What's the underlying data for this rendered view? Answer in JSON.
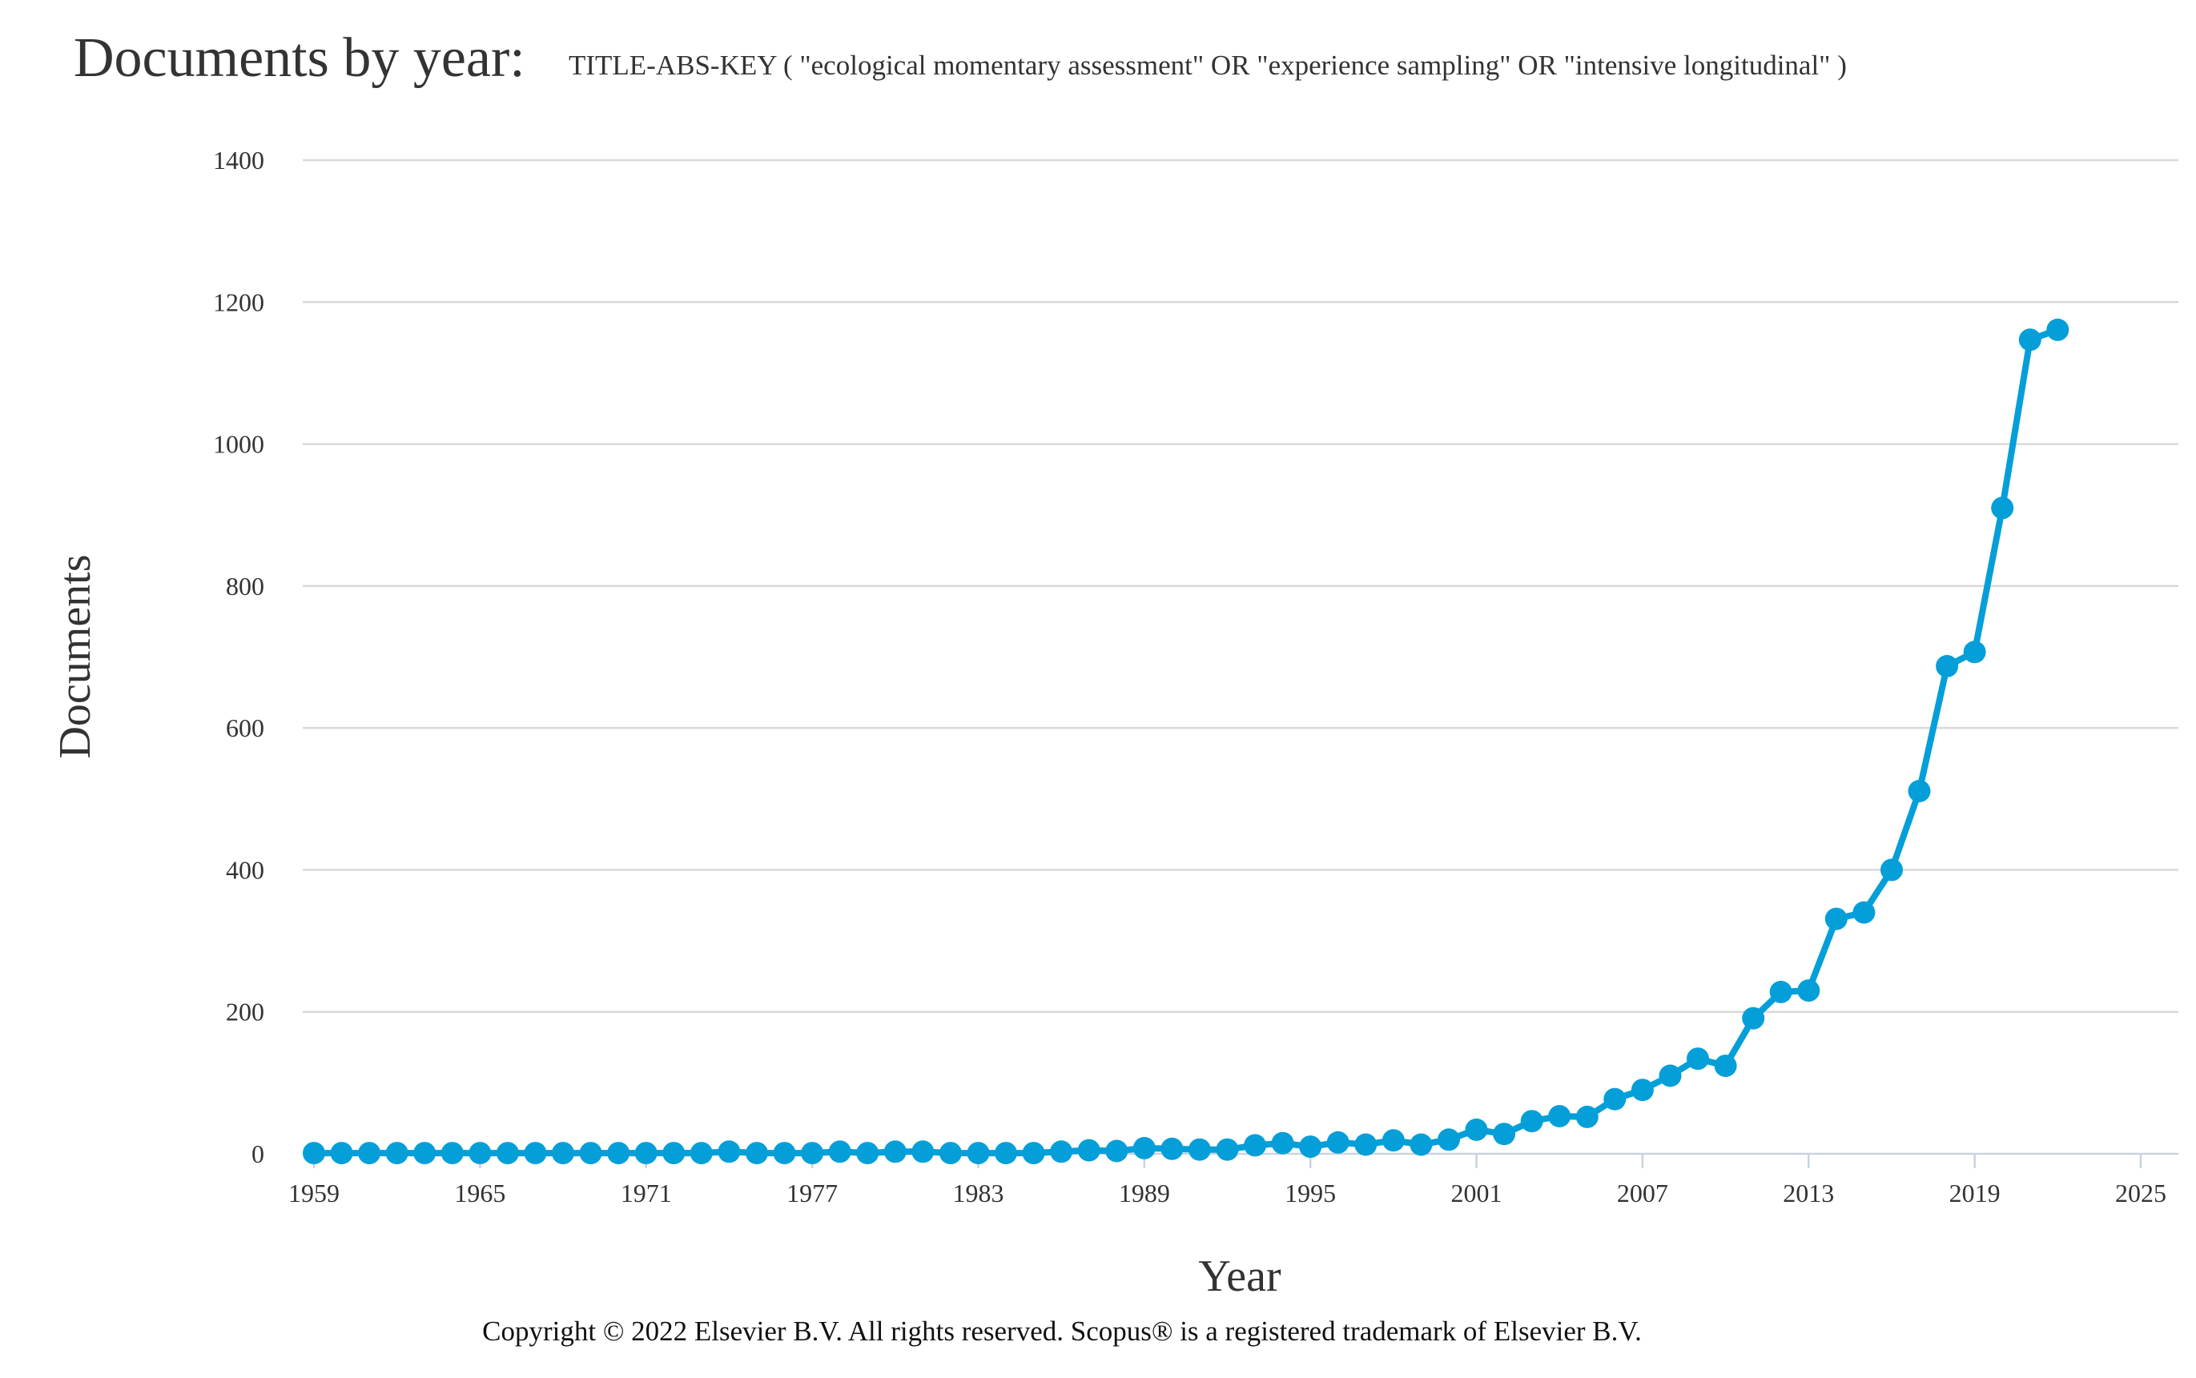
{
  "header": {
    "title": "Documents by year:",
    "query": "TITLE-ABS-KEY ( \"ecological momentary assessment\"  OR  \"experience sampling\"  OR  \"intensive longitudinal\" )"
  },
  "footer": {
    "copyright": "Copyright © 2022 Elsevier B.V. All rights reserved. Scopus® is a registered trademark of Elsevier B.V."
  },
  "colors": {
    "series": "#049fd9",
    "grid": "#d9d9d9",
    "axis": "#c9d3e0",
    "text": "#333333"
  },
  "chart_data": {
    "type": "line",
    "xlabel": "Year",
    "ylabel": "Documents",
    "xlim": [
      1959,
      2025
    ],
    "ylim": [
      0,
      1400
    ],
    "x_ticks": [
      1959,
      1965,
      1971,
      1977,
      1983,
      1989,
      1995,
      2001,
      2007,
      2013,
      2019,
      2025
    ],
    "y_ticks": [
      0,
      200,
      400,
      600,
      800,
      1000,
      1200,
      1400
    ],
    "grid": true,
    "legend": "none",
    "markers": true,
    "series": [
      {
        "x": [
          1959,
          1960,
          1961,
          1962,
          1963,
          1964,
          1965,
          1966,
          1967,
          1968,
          1969,
          1970,
          1971,
          1972,
          1973,
          1974,
          1975,
          1976,
          1977,
          1978,
          1979,
          1980,
          1981,
          1982,
          1983,
          1984,
          1985,
          1986,
          1987,
          1988,
          1989,
          1990,
          1991,
          1992,
          1993,
          1994,
          1995,
          1996,
          1997,
          1998,
          1999,
          2000,
          2001,
          2002,
          2003,
          2004,
          2005,
          2006,
          2007,
          2008,
          2009,
          2010,
          2011,
          2012,
          2013,
          2014,
          2015,
          2016,
          2017,
          2018,
          2019,
          2020,
          2021,
          2022
        ],
        "values": [
          1,
          1,
          1,
          1,
          1,
          1,
          1,
          1,
          1,
          1,
          1,
          1,
          1,
          1,
          1,
          3,
          1,
          1,
          1,
          3,
          1,
          3,
          3,
          1,
          1,
          1,
          1,
          3,
          5,
          4,
          8,
          7,
          6,
          6,
          12,
          15,
          10,
          16,
          13,
          19,
          13,
          20,
          34,
          28,
          46,
          53,
          52,
          77,
          90,
          110,
          134,
          124,
          191,
          228,
          230,
          331,
          340,
          400,
          511,
          687,
          707,
          910,
          1147,
          1161
        ]
      }
    ]
  }
}
